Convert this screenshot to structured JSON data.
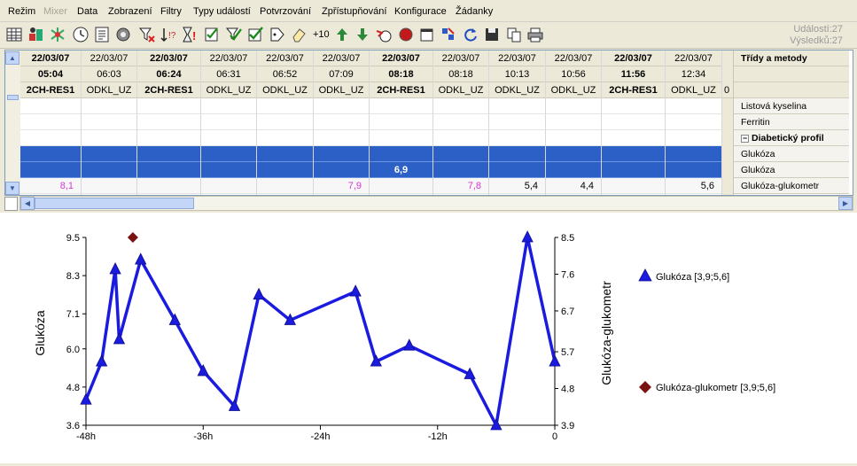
{
  "menu": {
    "items": [
      "Režim",
      "Mixer",
      "Data",
      "Zobrazení",
      "Filtry",
      "Typy událostí",
      "Potvrzování",
      "Zpřístupňování",
      "Konfigurace",
      "Žádanky"
    ]
  },
  "toolbar": {
    "plus10_label": "+10",
    "events_label": "Událostí:27",
    "results_label": "Výsledků:27",
    "icons": [
      "table-icon",
      "family-icon",
      "network-icon",
      "clock-icon",
      "document-icon",
      "settings-icon",
      "filter-icon",
      "sort-icon",
      "hourglass-alert-icon",
      "checklist-icon",
      "check-select-icon",
      "check-icon",
      "tag-icon",
      "eraser-icon",
      "arrow-up-icon",
      "arrow-down-icon",
      "quick-icon",
      "record-icon",
      "calendar-icon",
      "edit-icon",
      "refresh-icon",
      "save-icon",
      "copy-icon",
      "print-icon"
    ]
  },
  "grid": {
    "columns": [
      {
        "date": "22/03/07",
        "time": "05:04",
        "source": "2CH-RES1",
        "bold": true,
        "g1": "",
        "gg": "8,1",
        "ggc": "magenta"
      },
      {
        "date": "22/03/07",
        "time": "06:03",
        "source": "ODKL_UZ",
        "bold": false,
        "g1": "",
        "gg": "",
        "ggc": "black"
      },
      {
        "date": "22/03/07",
        "time": "06:24",
        "source": "2CH-RES1",
        "bold": true,
        "g1": "",
        "gg": "",
        "ggc": "black"
      },
      {
        "date": "22/03/07",
        "time": "06:31",
        "source": "ODKL_UZ",
        "bold": false,
        "g1": "",
        "gg": "",
        "ggc": "black"
      },
      {
        "date": "22/03/07",
        "time": "06:52",
        "source": "ODKL_UZ",
        "bold": false,
        "g1": "",
        "gg": "",
        "ggc": "black"
      },
      {
        "date": "22/03/07",
        "time": "07:09",
        "source": "ODKL_UZ",
        "bold": false,
        "g1": "",
        "gg": "7,9",
        "ggc": "magenta"
      },
      {
        "date": "22/03/07",
        "time": "08:18",
        "source": "2CH-RES1",
        "bold": true,
        "g1": "6,9",
        "gg": "",
        "ggc": "black"
      },
      {
        "date": "22/03/07",
        "time": "08:18",
        "source": "ODKL_UZ",
        "bold": false,
        "g1": "",
        "gg": "7,8",
        "ggc": "magenta"
      },
      {
        "date": "22/03/07",
        "time": "10:13",
        "source": "ODKL_UZ",
        "bold": false,
        "g1": "",
        "gg": "5,4",
        "ggc": "black"
      },
      {
        "date": "22/03/07",
        "time": "10:56",
        "source": "ODKL_UZ",
        "bold": false,
        "g1": "",
        "gg": "4,4",
        "ggc": "black"
      },
      {
        "date": "22/03/07",
        "time": "11:56",
        "source": "2CH-RES1",
        "bold": true,
        "g1": "",
        "gg": "",
        "ggc": "black"
      },
      {
        "date": "22/03/07",
        "time": "12:34",
        "source": "ODKL_UZ",
        "bold": false,
        "g1": "",
        "gg": "5,6",
        "ggc": "black"
      }
    ],
    "extra_col_value": "0",
    "header_title": "Třídy a metody",
    "row_labels": [
      "Listová kyselina",
      "Ferritin",
      "Diabetický profil",
      "Glukóza",
      "Glukóza",
      "Glukóza-glukometr"
    ],
    "group_toggle": "−"
  },
  "chart_data": {
    "type": "line",
    "ylabel_left": "Glukóza",
    "ylabel_right": "Glukóza-glukometr",
    "xlim": [
      -48,
      0
    ],
    "ylim_left": [
      3.6,
      9.5
    ],
    "ylim_right": [
      3.9,
      8.5
    ],
    "x_ticks": [
      "-48h",
      "-36h",
      "-24h",
      "-12h",
      "0"
    ],
    "y_ticks_left": [
      "9.5",
      "8.3",
      "7.1",
      "6.0",
      "4.8",
      "3.6"
    ],
    "y_ticks_right": [
      "8.5",
      "7.6",
      "6.7",
      "5.7",
      "4.8",
      "3.9"
    ],
    "series": [
      {
        "name": "Glukóza [3,9;5,6]",
        "color": "#1b1be0",
        "marker": "triangle",
        "x": [
          -48,
          -46.4,
          -45.0,
          -44.6,
          -42.4,
          -38.9,
          -36.0,
          -32.8,
          -30.3,
          -27.1,
          -20.4,
          -18.3,
          -14.9,
          -8.7,
          -6.0,
          -2.8,
          0
        ],
        "y": [
          4.4,
          5.6,
          8.5,
          6.3,
          8.8,
          6.9,
          5.3,
          4.2,
          7.7,
          6.9,
          7.8,
          5.6,
          6.1,
          5.2,
          3.6,
          9.5,
          5.6
        ]
      },
      {
        "name": "Glukóza-glukometr [3,9;5,6]",
        "color": "#7b1212",
        "marker": "diamond",
        "x": [
          -43.2
        ],
        "y": [
          8.5
        ]
      }
    ]
  }
}
